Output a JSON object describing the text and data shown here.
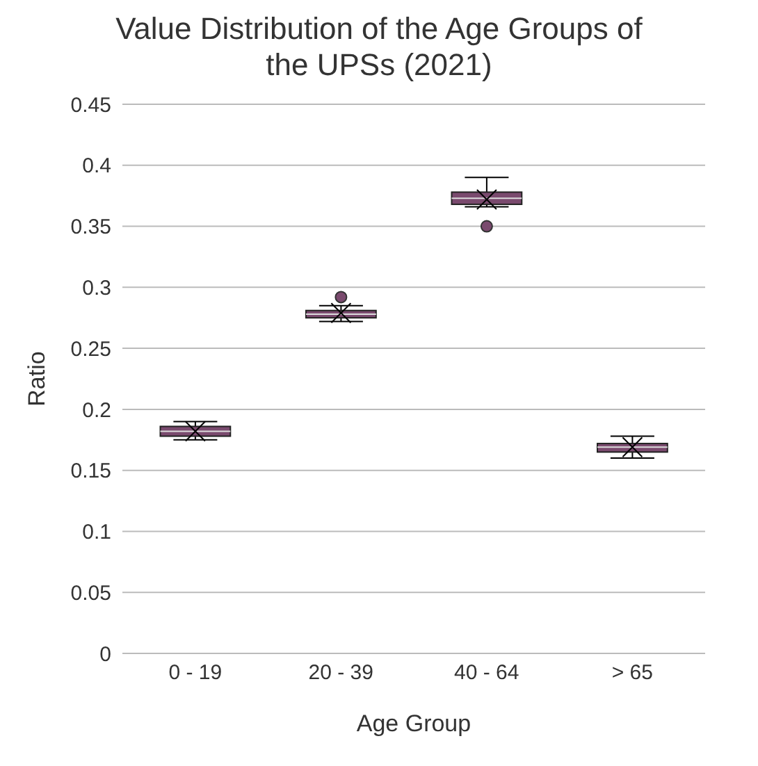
{
  "chart_data": {
    "type": "box",
    "title": "Value Distribution of the Age Groups of the UPSs (2021)",
    "xlabel": "Age Group",
    "ylabel": "Ratio",
    "categories": [
      "0 - 19",
      "20 - 39",
      "40 - 64",
      "> 65"
    ],
    "boxes": [
      {
        "low": 0.175,
        "q1": 0.178,
        "median": 0.182,
        "q3": 0.186,
        "high": 0.19,
        "mean": 0.182
      },
      {
        "low": 0.272,
        "q1": 0.275,
        "median": 0.278,
        "q3": 0.281,
        "high": 0.285,
        "mean": 0.279,
        "outliers": [
          0.292
        ]
      },
      {
        "low": 0.366,
        "q1": 0.368,
        "median": 0.373,
        "q3": 0.378,
        "high": 0.39,
        "mean": 0.372,
        "outliers": [
          0.35
        ]
      },
      {
        "low": 0.16,
        "q1": 0.165,
        "median": 0.169,
        "q3": 0.172,
        "high": 0.178,
        "mean": 0.169
      }
    ],
    "color": "#7a4a6e",
    "ylim": [
      0,
      0.45
    ],
    "yticks": [
      0,
      0.05,
      0.1,
      0.15,
      0.2,
      0.25,
      0.3,
      0.35,
      0.4,
      0.45
    ],
    "grid": "y",
    "legend": false
  }
}
